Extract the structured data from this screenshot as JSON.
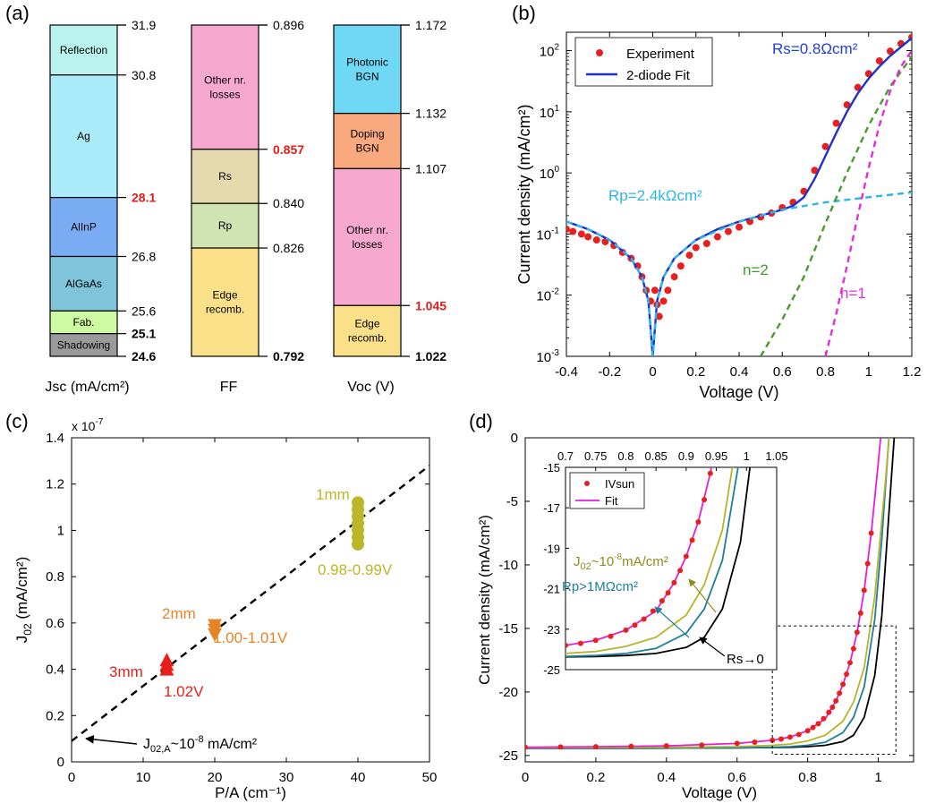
{
  "panel_labels": [
    "(a)",
    "(b)",
    "(c)",
    "(d)"
  ],
  "chart_data": [
    {
      "panel": "(a)",
      "type": "waterfall",
      "columns": [
        {
          "xlabel": "Jsc (mA/cm²)",
          "top_value": "31.9",
          "segments": [
            {
              "label": "Reflection",
              "from": 31.9,
              "to": 30.8,
              "color": "#b9f3ee"
            },
            {
              "label": "Ag",
              "from": 30.8,
              "to": 28.1,
              "color": "#aaeaf9"
            },
            {
              "label": "AlInP",
              "from": 28.1,
              "to": 26.8,
              "color": "#7aacf4"
            },
            {
              "label": "AlGaAs",
              "from": 26.8,
              "to": 25.6,
              "color": "#7fc4d8"
            },
            {
              "label": "Fab.",
              "from": 25.6,
              "to": 25.1,
              "color": "#cdfaa3"
            },
            {
              "label": "Shadowing",
              "from": 25.1,
              "to": 24.6,
              "color": "#9a9a9a"
            }
          ],
          "ticks": [
            {
              "value": 31.9,
              "text": "31.9",
              "style": "normal"
            },
            {
              "value": 30.8,
              "text": "30.8",
              "style": "normal"
            },
            {
              "value": 28.1,
              "text": "28.1",
              "style": "red"
            },
            {
              "value": 26.8,
              "text": "26.8",
              "style": "normal"
            },
            {
              "value": 25.6,
              "text": "25.6",
              "style": "normal"
            },
            {
              "value": 25.1,
              "text": "25.1",
              "style": "bold"
            },
            {
              "value": 24.6,
              "text": "24.6",
              "style": "bold"
            }
          ]
        },
        {
          "xlabel": "FF",
          "top_value": "0.896",
          "segments": [
            {
              "label": "Other nr. losses",
              "from": 0.896,
              "to": 0.857,
              "color": "#f7a8cf"
            },
            {
              "label": "Rs",
              "from": 0.857,
              "to": 0.84,
              "color": "#e6d9ad"
            },
            {
              "label": "Rp",
              "from": 0.84,
              "to": 0.826,
              "color": "#cfe3b3"
            },
            {
              "label": "Edge recomb.",
              "from": 0.826,
              "to": 0.792,
              "color": "#fbe08a"
            }
          ],
          "ticks": [
            {
              "value": 0.896,
              "text": "0.896",
              "style": "normal"
            },
            {
              "value": 0.857,
              "text": "0.857",
              "style": "red"
            },
            {
              "value": 0.84,
              "text": "0.840",
              "style": "normal"
            },
            {
              "value": 0.826,
              "text": "0.826",
              "style": "normal"
            },
            {
              "value": 0.792,
              "text": "0.792",
              "style": "bold"
            }
          ]
        },
        {
          "xlabel": "Voc (V)",
          "top_value": "1.172",
          "segments": [
            {
              "label": "Photonic BGN",
              "from": 1.172,
              "to": 1.132,
              "color": "#6fd8f5"
            },
            {
              "label": "Doping BGN",
              "from": 1.132,
              "to": 1.107,
              "color": "#f9a97d"
            },
            {
              "label": "Other nr. losses",
              "from": 1.107,
              "to": 1.045,
              "color": "#f7a8cf"
            },
            {
              "label": "Edge recomb.",
              "from": 1.045,
              "to": 1.022,
              "color": "#fbe08a"
            }
          ],
          "ticks": [
            {
              "value": 1.172,
              "text": "1.172",
              "style": "normal"
            },
            {
              "value": 1.132,
              "text": "1.132",
              "style": "normal"
            },
            {
              "value": 1.107,
              "text": "1.107",
              "style": "normal"
            },
            {
              "value": 1.045,
              "text": "1.045",
              "style": "red"
            },
            {
              "value": 1.022,
              "text": "1.022",
              "style": "bold"
            }
          ]
        }
      ]
    },
    {
      "panel": "(b)",
      "type": "line",
      "yscale": "log",
      "xlabel": "Voltage (V)",
      "ylabel": "Current density (mA/cm²)",
      "xlim": [
        -0.4,
        1.2
      ],
      "ylim": [
        0.001,
        200
      ],
      "xticks": [
        "-0.4",
        "-0.2",
        "0",
        "0.2",
        "0.4",
        "0.6",
        "0.8",
        "1",
        "1.2"
      ],
      "yticks": [
        {
          "value": 0.001,
          "exp": "-3"
        },
        {
          "value": 0.01,
          "exp": "-2"
        },
        {
          "value": 0.1,
          "exp": "-1"
        },
        {
          "value": 1,
          "exp": "0"
        },
        {
          "value": 10,
          "exp": "1"
        },
        {
          "value": 100,
          "exp": "2"
        }
      ],
      "legend": [
        "Experiment",
        "2-diode Fit"
      ],
      "legend_position": "top-left",
      "annotations": [
        {
          "text": "Rs=0.8Ωcm²",
          "color": "#1f3fd6"
        },
        {
          "text": "Rp=2.4kΩcm²",
          "color": "#2cb5e8"
        },
        {
          "text": "n=2",
          "color": "#3f9a2a"
        },
        {
          "text": "n=1",
          "color": "#e02ed8"
        }
      ],
      "series": [
        {
          "name": "Experiment",
          "kind": "markers",
          "color": "#e8201d",
          "x": [
            -0.4,
            -0.37,
            -0.33,
            -0.3,
            -0.26,
            -0.22,
            -0.18,
            -0.14,
            -0.1,
            -0.07,
            -0.05,
            -0.03,
            -0.01,
            0.01,
            0.02,
            0.03,
            0.05,
            0.07,
            0.1,
            0.13,
            0.17,
            0.2,
            0.25,
            0.3,
            0.35,
            0.4,
            0.45,
            0.5,
            0.55,
            0.6,
            0.65,
            0.7,
            0.75,
            0.8,
            0.85,
            0.9,
            0.95,
            1.0,
            1.05,
            1.1,
            1.15,
            1.2
          ],
          "y": [
            0.12,
            0.11,
            0.1,
            0.09,
            0.08,
            0.075,
            0.065,
            0.05,
            0.04,
            0.03,
            0.02,
            0.012,
            0.008,
            0.012,
            0.007,
            0.0045,
            0.008,
            0.012,
            0.02,
            0.03,
            0.045,
            0.06,
            0.07,
            0.09,
            0.11,
            0.13,
            0.16,
            0.19,
            0.22,
            0.27,
            0.33,
            0.5,
            1.1,
            2.7,
            6.5,
            13,
            25,
            42,
            68,
            98,
            130,
            165
          ]
        },
        {
          "name": "2-diode Fit",
          "kind": "line",
          "color": "#1f2fd0",
          "x": [
            -0.4,
            -0.3,
            -0.2,
            -0.1,
            -0.05,
            -0.02,
            0,
            0.02,
            0.05,
            0.1,
            0.2,
            0.3,
            0.4,
            0.5,
            0.6,
            0.65,
            0.7,
            0.75,
            0.8,
            0.85,
            0.9,
            0.95,
            1.0,
            1.05,
            1.1,
            1.15,
            1.2
          ],
          "y": [
            0.16,
            0.12,
            0.08,
            0.04,
            0.02,
            0.008,
            0.001,
            0.008,
            0.02,
            0.04,
            0.08,
            0.12,
            0.16,
            0.2,
            0.25,
            0.29,
            0.4,
            0.8,
            1.9,
            4.5,
            10,
            20,
            35,
            55,
            82,
            115,
            160
          ]
        },
        {
          "name": "Rp component",
          "kind": "dashed",
          "color": "#2cb5e8",
          "x": [
            -0.4,
            -0.3,
            -0.2,
            -0.1,
            -0.05,
            -0.02,
            0,
            0.02,
            0.05,
            0.1,
            0.2,
            0.4,
            0.6,
            0.8,
            1.0,
            1.2
          ],
          "y": [
            0.16,
            0.12,
            0.08,
            0.04,
            0.02,
            0.008,
            0.001,
            0.008,
            0.02,
            0.04,
            0.08,
            0.16,
            0.25,
            0.33,
            0.4,
            0.48
          ]
        },
        {
          "name": "n=2 component",
          "kind": "dashed",
          "color": "#4a9b2e",
          "x": [
            0.5,
            0.6,
            0.7,
            0.8,
            0.9,
            1.0,
            1.1,
            1.2
          ],
          "y": [
            0.001,
            0.004,
            0.02,
            0.15,
            1.0,
            6,
            26,
            80
          ]
        },
        {
          "name": "n=1 component",
          "kind": "dashed",
          "color": "#e02ed8",
          "x": [
            0.8,
            0.85,
            0.9,
            0.95,
            1.0,
            1.05,
            1.1,
            1.15,
            1.2
          ],
          "y": [
            0.001,
            0.005,
            0.03,
            0.2,
            1.2,
            6,
            22,
            55,
            100
          ]
        }
      ]
    },
    {
      "panel": "(c)",
      "type": "scatter",
      "xlabel": "P/A (cm⁻¹)",
      "ylabel": "J02 (mA/cm²)",
      "ylabel_main": "J",
      "ylabel_sub": "02",
      "ylabel_unit": " (mA/cm²)",
      "y_multiplier": "x 10",
      "y_multiplier_exp": "-7",
      "xlim": [
        0,
        50
      ],
      "ylim": [
        0,
        1.4
      ],
      "xticks": [
        "0",
        "10",
        "20",
        "30",
        "40",
        "50"
      ],
      "yticks": [
        "0",
        "0.2",
        "0.4",
        "0.6",
        "0.8",
        "1",
        "1.2",
        "1.4"
      ],
      "groups": [
        {
          "size_label": "3mm",
          "voltage_label": "1.02V",
          "marker": "triangle-up",
          "color": "#e8201d",
          "x": 13.3,
          "y": [
            0.4,
            0.42,
            0.44
          ]
        },
        {
          "size_label": "2mm",
          "voltage_label": "1.00-1.01V",
          "marker": "triangle-down",
          "color": "#e58427",
          "x": 20,
          "y": [
            0.55,
            0.57,
            0.59
          ]
        },
        {
          "size_label": "1mm",
          "voltage_label": "0.98-0.99V",
          "marker": "circle",
          "color": "#bcb62a",
          "x": 40,
          "y": [
            0.94,
            0.97,
            1.0,
            1.03,
            1.06,
            1.09,
            1.12
          ]
        }
      ],
      "fit_line": {
        "x": [
          0,
          50
        ],
        "y": [
          0.09,
          1.28
        ]
      },
      "annotation": {
        "main": "J",
        "sub": "02,A",
        "text": "~10",
        "exp": "-8",
        "tail": " mA/cm²"
      }
    },
    {
      "panel": "(d)",
      "type": "line",
      "xlabel": "Voltage (V)",
      "ylabel": "Current density (mA/cm²)",
      "xlim": [
        0,
        1.1
      ],
      "ylim": [
        -25.5,
        0
      ],
      "xticks": [
        "0",
        "0.2",
        "0.4",
        "0.6",
        "0.8",
        "1"
      ],
      "yticks": [
        "0",
        "-5",
        "-10",
        "-15",
        "-20",
        "-25"
      ],
      "series": [
        {
          "name": "IVsun",
          "kind": "markers",
          "color": "#e8201d",
          "x": [
            0.0,
            0.1,
            0.2,
            0.3,
            0.4,
            0.5,
            0.6,
            0.65,
            0.7,
            0.725,
            0.75,
            0.775,
            0.8,
            0.815,
            0.83,
            0.845,
            0.86,
            0.87,
            0.88,
            0.89,
            0.9,
            0.91,
            0.92,
            0.93,
            0.94,
            0.95,
            0.96,
            0.97,
            0.98
          ],
          "y": [
            -24.35,
            -24.33,
            -24.31,
            -24.28,
            -24.24,
            -24.18,
            -24.05,
            -23.95,
            -23.8,
            -23.7,
            -23.55,
            -23.35,
            -23.05,
            -22.8,
            -22.5,
            -22.1,
            -21.6,
            -21.2,
            -20.7,
            -20.1,
            -19.4,
            -18.6,
            -17.7,
            -16.6,
            -15.3,
            -13.8,
            -12.0,
            -9.9,
            -7.5
          ]
        },
        {
          "name": "Fit",
          "kind": "line",
          "color": "#e51ed8",
          "x": [
            0.0,
            0.2,
            0.4,
            0.6,
            0.7,
            0.75,
            0.8,
            0.85,
            0.88,
            0.9,
            0.92,
            0.94,
            0.96,
            0.98,
            1.0,
            1.02
          ],
          "y": [
            -24.35,
            -24.31,
            -24.24,
            -24.05,
            -23.8,
            -23.55,
            -23.05,
            -22.1,
            -20.7,
            -19.4,
            -17.7,
            -15.3,
            -12.0,
            -7.5,
            -2.0,
            4.0
          ]
        },
        {
          "name": "J02~1e-8",
          "kind": "line",
          "color": "#b6b42a",
          "x": [
            0.0,
            0.4,
            0.6,
            0.7,
            0.75,
            0.8,
            0.85,
            0.9,
            0.93,
            0.96,
            0.99,
            1.02,
            1.04
          ],
          "y": [
            -24.4,
            -24.35,
            -24.3,
            -24.2,
            -24.1,
            -23.85,
            -23.4,
            -22.3,
            -20.8,
            -18.1,
            -12.5,
            -3.5,
            3.0
          ]
        },
        {
          "name": "Rp>1MΩcm²",
          "kind": "line",
          "color": "#1f7f99",
          "x": [
            0.0,
            0.4,
            0.6,
            0.7,
            0.75,
            0.8,
            0.85,
            0.9,
            0.93,
            0.96,
            0.99,
            1.01,
            1.03,
            1.045
          ],
          "y": [
            -24.45,
            -24.42,
            -24.4,
            -24.35,
            -24.3,
            -24.2,
            -23.95,
            -23.2,
            -22.0,
            -19.6,
            -14.3,
            -8.0,
            0.0,
            5.0
          ]
        },
        {
          "name": "Rs→0",
          "kind": "line",
          "color": "#000000",
          "x": [
            0.0,
            0.4,
            0.6,
            0.7,
            0.75,
            0.8,
            0.85,
            0.9,
            0.93,
            0.96,
            0.99,
            1.01,
            1.03,
            1.05,
            1.07
          ],
          "y": [
            -24.45,
            -24.42,
            -24.4,
            -24.37,
            -24.35,
            -24.3,
            -24.2,
            -23.9,
            -23.4,
            -22.0,
            -18.7,
            -14.0,
            -6.0,
            2.0,
            8.0
          ]
        }
      ],
      "zoom_box": {
        "x": [
          0.7,
          1.05
        ],
        "y": [
          -24.9,
          -14.8
        ]
      },
      "inset": {
        "xlim": [
          0.7,
          1.05
        ],
        "ylim": [
          -25,
          -15
        ],
        "xticks": [
          "0.7",
          "0.75",
          "0.8",
          "0.85",
          "0.9",
          "0.95",
          "1",
          "1.05"
        ],
        "yticks": [
          "-15",
          "-17",
          "-19",
          "-21",
          "-23",
          "-25"
        ],
        "legend": [
          "IVsun",
          "Fit"
        ],
        "labels": [
          {
            "text": "Rs→0",
            "color": "#000000"
          },
          {
            "text": "Rp>1MΩcm²",
            "color": "#1f7f99"
          }
        ],
        "j02_label": {
          "main": "J",
          "sub": "02",
          "text": "~10",
          "exp": "-8",
          "tail": "mA/cm²",
          "color": "#8e8a1d"
        }
      }
    }
  ]
}
